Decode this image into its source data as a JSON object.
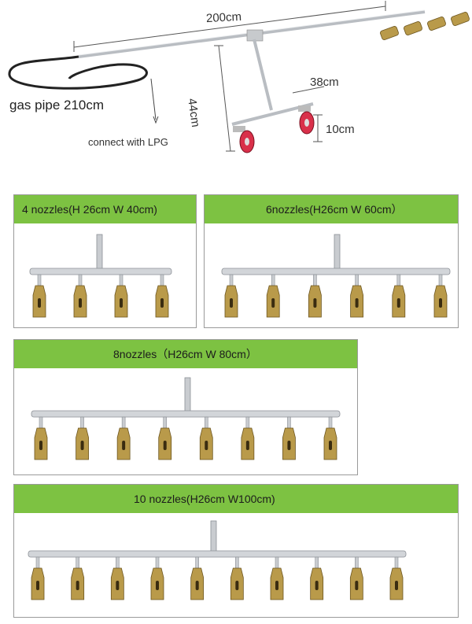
{
  "top": {
    "length_label": "200cm",
    "height_label": "44cm",
    "width_label": "38cm",
    "wheel_label": "10cm",
    "pipe_label": "gas pipe 210cm",
    "connect_label": "connect with LPG"
  },
  "panels": [
    {
      "title": "4 nozzles(H 26cm W 40cm)",
      "nozzles": 4
    },
    {
      "title": "6nozzles(H26cm W 60cm）",
      "nozzles": 6
    },
    {
      "title": "8nozzles（H26cm W 80cm）",
      "nozzles": 8
    },
    {
      "title": "10 nozzles(H26cm W100cm)",
      "nozzles": 10
    }
  ],
  "colors": {
    "header": "#7dc242",
    "pipe": "#c9ccd0",
    "nozzle": "#b99a4a",
    "wheel": "#d9304a"
  }
}
